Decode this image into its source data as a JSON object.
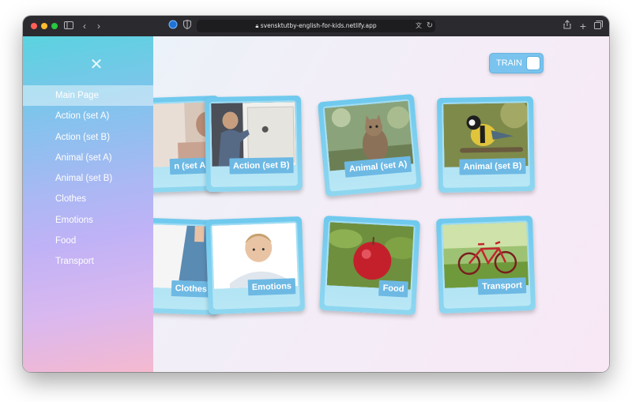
{
  "browser": {
    "url": "svensktutby-english-for-kids.netlify.app"
  },
  "sidebar": {
    "close_symbol": "✕",
    "items": [
      {
        "label": "Main Page",
        "active": true
      },
      {
        "label": "Action (set A)"
      },
      {
        "label": "Action (set B)"
      },
      {
        "label": "Animal (set A)"
      },
      {
        "label": "Animal (set B)"
      },
      {
        "label": "Clothes"
      },
      {
        "label": "Emotions"
      },
      {
        "label": "Food"
      },
      {
        "label": "Transport"
      }
    ]
  },
  "mode_toggle": {
    "label": "TRAIN",
    "on": false
  },
  "cards": [
    {
      "label": "Action (set A)",
      "visible_label": "n (set A)",
      "image": "child-action-photo"
    },
    {
      "label": "Action (set B)",
      "image": "boy-opening-door-photo"
    },
    {
      "label": "Animal (set A)",
      "image": "cat-photo"
    },
    {
      "label": "Animal (set B)",
      "image": "bird-photo"
    },
    {
      "label": "Clothes",
      "image": "girl-dress-photo"
    },
    {
      "label": "Emotions",
      "image": "sad-boy-photo"
    },
    {
      "label": "Food",
      "image": "apple-photo"
    },
    {
      "label": "Transport",
      "image": "bicycle-photo"
    }
  ],
  "colors": {
    "card_frame": "#6fc9ee",
    "label_bg": "#6db9e4",
    "toggle_bg": "#79c3ee"
  }
}
